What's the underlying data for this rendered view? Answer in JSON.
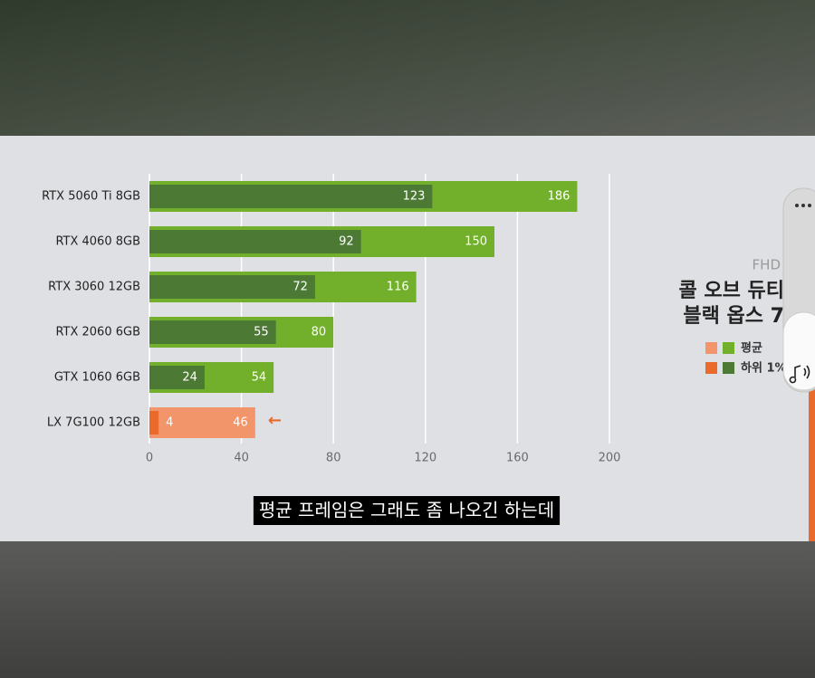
{
  "chart_data": {
    "type": "bar",
    "orientation": "horizontal",
    "categories": [
      "RTX 5060 Ti 8GB",
      "RTX 4060 8GB",
      "RTX 3060 12GB",
      "RTX 2060 6GB",
      "GTX 1060 6GB",
      "LX 7G100 12GB"
    ],
    "series": [
      {
        "name": "평균",
        "color": "#72b02c",
        "colors": [
          "#72b02c",
          "#72b02c",
          "#72b02c",
          "#72b02c",
          "#72b02c",
          "#f2956a"
        ],
        "values": [
          186,
          150,
          116,
          80,
          54,
          46
        ]
      },
      {
        "name": "하위 1%",
        "color": "#4c7a35",
        "colors": [
          "#4c7a35",
          "#4c7a35",
          "#4c7a35",
          "#4c7a35",
          "#4c7a35",
          "#ea6a2c"
        ],
        "values": [
          123,
          92,
          72,
          55,
          24,
          4
        ]
      }
    ],
    "legend_colors": [
      "#f2956a",
      "#ea6a2c"
    ],
    "xlim": [
      0,
      200
    ],
    "xticks": [
      0,
      40,
      80,
      120,
      160,
      200
    ],
    "grid": true,
    "resolution": "FHD",
    "title_lines": [
      "콜 오브 듀티",
      "블랙 옵스 7"
    ],
    "annotation": "←"
  },
  "caption": "평균 프레임은 그래도 좀 나오긴 하는데"
}
